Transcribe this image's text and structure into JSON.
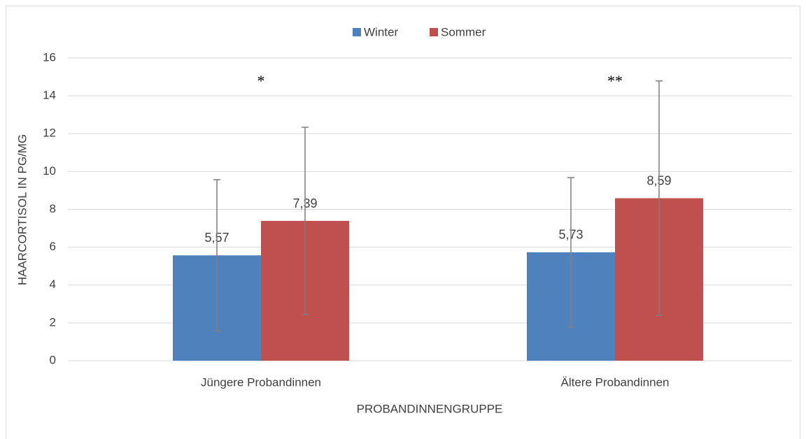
{
  "chart_data": {
    "type": "bar",
    "categories": [
      "Jüngere Probandinnen",
      "Ältere Probandinnen"
    ],
    "series": [
      {
        "name": "Winter",
        "color": "#4f81bd",
        "values": [
          5.57,
          5.73
        ],
        "value_labels": [
          "5,57",
          "5,73"
        ],
        "errors": [
          4.0,
          3.95
        ]
      },
      {
        "name": "Sommer",
        "color": "#c0504d",
        "values": [
          7.39,
          8.59
        ],
        "value_labels": [
          "7,39",
          "8,59"
        ],
        "errors": [
          4.95,
          6.2
        ]
      }
    ],
    "annotations": [
      "*",
      "**"
    ],
    "ylabel": "HAARCORTISOL IN PG/MG",
    "xlabel": "PROBANDINNENGRUPPE",
    "ylim": [
      0,
      16
    ],
    "yticks": [
      0,
      2,
      4,
      6,
      8,
      10,
      12,
      14,
      16
    ],
    "grid": true,
    "legend": "top"
  }
}
